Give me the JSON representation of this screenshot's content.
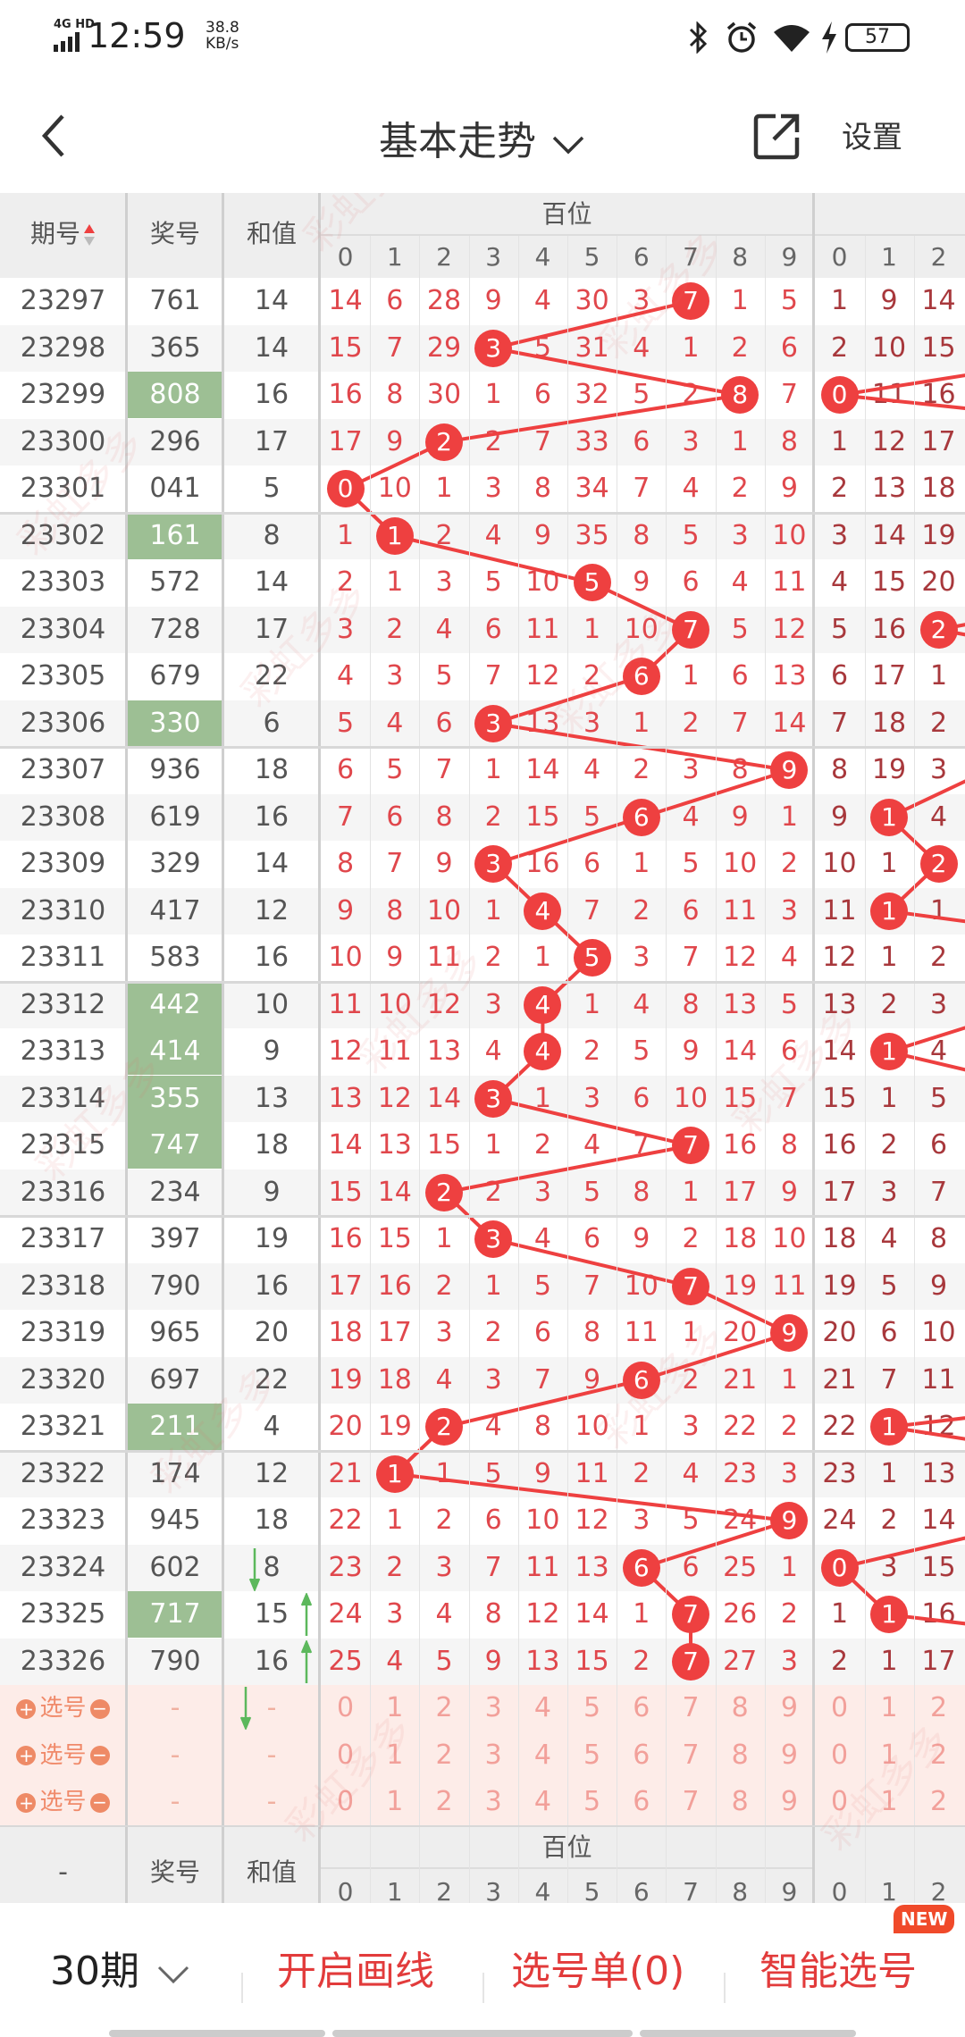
{
  "status_bar": {
    "network": "4G HD",
    "time": "12:59",
    "speed_value": "38.8",
    "speed_unit": "KB/s",
    "battery": "57"
  },
  "header": {
    "title": "基本走势",
    "settings_label": "设置"
  },
  "table": {
    "col_period": "期号",
    "col_prize": "奖号",
    "col_sum": "和值",
    "group_hundreds": "百位",
    "digits": [
      "0",
      "1",
      "2",
      "3",
      "4",
      "5",
      "6",
      "7",
      "8",
      "9"
    ],
    "tens_digits_visible": [
      "0",
      "1",
      "2"
    ],
    "rows": [
      {
        "period": "23297",
        "prize": "761",
        "sum": "14",
        "hi": false,
        "h": [
          14,
          6,
          28,
          9,
          4,
          30,
          3,
          7,
          1,
          5
        ],
        "t": [
          1,
          9,
          14
        ]
      },
      {
        "period": "23298",
        "prize": "365",
        "sum": "14",
        "hi": false,
        "h": [
          15,
          7,
          29,
          3,
          5,
          31,
          4,
          1,
          2,
          6
        ],
        "t": [
          2,
          10,
          15
        ]
      },
      {
        "period": "23299",
        "prize": "808",
        "sum": "16",
        "hi": true,
        "h": [
          16,
          8,
          30,
          1,
          6,
          32,
          5,
          2,
          8,
          7
        ],
        "t": [
          0,
          11,
          16
        ]
      },
      {
        "period": "23300",
        "prize": "296",
        "sum": "17",
        "hi": false,
        "h": [
          17,
          9,
          2,
          2,
          7,
          33,
          6,
          3,
          1,
          8
        ],
        "t": [
          1,
          12,
          17
        ]
      },
      {
        "period": "23301",
        "prize": "041",
        "sum": "5",
        "hi": false,
        "h": [
          0,
          10,
          1,
          3,
          8,
          34,
          7,
          4,
          2,
          9
        ],
        "t": [
          2,
          13,
          18
        ]
      },
      {
        "period": "23302",
        "prize": "161",
        "sum": "8",
        "hi": true,
        "h": [
          1,
          1,
          2,
          4,
          9,
          35,
          8,
          5,
          3,
          10
        ],
        "t": [
          3,
          14,
          19
        ]
      },
      {
        "period": "23303",
        "prize": "572",
        "sum": "14",
        "hi": false,
        "h": [
          2,
          1,
          3,
          5,
          10,
          5,
          9,
          6,
          4,
          11
        ],
        "t": [
          4,
          15,
          20
        ]
      },
      {
        "period": "23304",
        "prize": "728",
        "sum": "17",
        "hi": false,
        "h": [
          3,
          2,
          4,
          6,
          11,
          1,
          10,
          7,
          5,
          12
        ],
        "t": [
          5,
          16,
          2
        ]
      },
      {
        "period": "23305",
        "prize": "679",
        "sum": "22",
        "hi": false,
        "h": [
          4,
          3,
          5,
          7,
          12,
          2,
          6,
          1,
          6,
          13
        ],
        "t": [
          6,
          17,
          1
        ]
      },
      {
        "period": "23306",
        "prize": "330",
        "sum": "6",
        "hi": true,
        "h": [
          5,
          4,
          6,
          3,
          13,
          3,
          1,
          2,
          7,
          14
        ],
        "t": [
          7,
          18,
          2
        ]
      },
      {
        "period": "23307",
        "prize": "936",
        "sum": "18",
        "hi": false,
        "h": [
          6,
          5,
          7,
          1,
          14,
          4,
          2,
          3,
          8,
          9
        ],
        "t": [
          8,
          19,
          3
        ]
      },
      {
        "period": "23308",
        "prize": "619",
        "sum": "16",
        "hi": false,
        "h": [
          7,
          6,
          8,
          2,
          15,
          5,
          6,
          4,
          9,
          1
        ],
        "t": [
          9,
          1,
          4
        ]
      },
      {
        "period": "23309",
        "prize": "329",
        "sum": "14",
        "hi": false,
        "h": [
          8,
          7,
          9,
          3,
          16,
          6,
          1,
          5,
          10,
          2
        ],
        "t": [
          10,
          1,
          2
        ]
      },
      {
        "period": "23310",
        "prize": "417",
        "sum": "12",
        "hi": false,
        "h": [
          9,
          8,
          10,
          1,
          4,
          7,
          2,
          6,
          11,
          3
        ],
        "t": [
          11,
          1,
          1
        ]
      },
      {
        "period": "23311",
        "prize": "583",
        "sum": "16",
        "hi": false,
        "h": [
          10,
          9,
          11,
          2,
          1,
          5,
          3,
          7,
          12,
          4
        ],
        "t": [
          12,
          1,
          2
        ]
      },
      {
        "period": "23312",
        "prize": "442",
        "sum": "10",
        "hi": true,
        "h": [
          11,
          10,
          12,
          3,
          4,
          1,
          4,
          8,
          13,
          5
        ],
        "t": [
          13,
          2,
          3
        ]
      },
      {
        "period": "23313",
        "prize": "414",
        "sum": "9",
        "hi": true,
        "h": [
          12,
          11,
          13,
          4,
          4,
          2,
          5,
          9,
          14,
          6
        ],
        "t": [
          14,
          1,
          4
        ]
      },
      {
        "period": "23314",
        "prize": "355",
        "sum": "13",
        "hi": true,
        "h": [
          13,
          12,
          14,
          3,
          1,
          3,
          6,
          10,
          15,
          7
        ],
        "t": [
          15,
          1,
          5
        ]
      },
      {
        "period": "23315",
        "prize": "747",
        "sum": "18",
        "hi": true,
        "h": [
          14,
          13,
          15,
          1,
          2,
          4,
          7,
          7,
          16,
          8
        ],
        "t": [
          16,
          2,
          6
        ]
      },
      {
        "period": "23316",
        "prize": "234",
        "sum": "9",
        "hi": false,
        "h": [
          15,
          14,
          2,
          2,
          3,
          5,
          8,
          1,
          17,
          9
        ],
        "t": [
          17,
          3,
          7
        ]
      },
      {
        "period": "23317",
        "prize": "397",
        "sum": "19",
        "hi": false,
        "h": [
          16,
          15,
          1,
          3,
          4,
          6,
          9,
          2,
          18,
          10
        ],
        "t": [
          18,
          4,
          8
        ]
      },
      {
        "period": "23318",
        "prize": "790",
        "sum": "16",
        "hi": false,
        "h": [
          17,
          16,
          2,
          1,
          5,
          7,
          10,
          7,
          19,
          11
        ],
        "t": [
          19,
          5,
          9
        ]
      },
      {
        "period": "23319",
        "prize": "965",
        "sum": "20",
        "hi": false,
        "h": [
          18,
          17,
          3,
          2,
          6,
          8,
          11,
          1,
          20,
          9
        ],
        "t": [
          20,
          6,
          10
        ]
      },
      {
        "period": "23320",
        "prize": "697",
        "sum": "22",
        "hi": false,
        "h": [
          19,
          18,
          4,
          3,
          7,
          9,
          6,
          2,
          21,
          1
        ],
        "t": [
          21,
          7,
          11
        ]
      },
      {
        "period": "23321",
        "prize": "211",
        "sum": "4",
        "hi": true,
        "h": [
          20,
          19,
          2,
          4,
          8,
          10,
          1,
          3,
          22,
          2
        ],
        "t": [
          22,
          1,
          12
        ]
      },
      {
        "period": "23322",
        "prize": "174",
        "sum": "12",
        "hi": false,
        "h": [
          21,
          1,
          1,
          5,
          9,
          11,
          2,
          4,
          23,
          3
        ],
        "t": [
          23,
          1,
          13
        ]
      },
      {
        "period": "23323",
        "prize": "945",
        "sum": "18",
        "hi": false,
        "h": [
          22,
          1,
          2,
          6,
          10,
          12,
          3,
          5,
          24,
          9
        ],
        "t": [
          24,
          2,
          14
        ]
      },
      {
        "period": "23324",
        "prize": "602",
        "sum": "8",
        "hi": false,
        "trend": "down",
        "h": [
          23,
          2,
          3,
          7,
          11,
          13,
          6,
          6,
          25,
          1
        ],
        "t": [
          0,
          3,
          15
        ]
      },
      {
        "period": "23325",
        "prize": "717",
        "sum": "15",
        "hi": true,
        "trend": "up",
        "h": [
          24,
          3,
          4,
          8,
          12,
          14,
          1,
          7,
          26,
          2
        ],
        "t": [
          1,
          1,
          16
        ]
      },
      {
        "period": "23326",
        "prize": "790",
        "sum": "16",
        "hi": false,
        "trend": "up",
        "h": [
          25,
          4,
          5,
          9,
          13,
          15,
          2,
          7,
          27,
          3
        ],
        "t": [
          2,
          1,
          17
        ]
      }
    ],
    "select_rows": [
      {
        "label": "选号",
        "prize": "-",
        "sum": "-",
        "trend": "down"
      },
      {
        "label": "选号",
        "prize": "-",
        "sum": "-"
      },
      {
        "label": "选号",
        "prize": "-",
        "sum": "-"
      }
    ],
    "footer_period": "-"
  },
  "bottom_bar": {
    "periods": "30期",
    "draw_lines": "开启画线",
    "pick_list": "选号单(0)",
    "smart_pick": "智能选号",
    "new_badge": "NEW"
  },
  "watermark": "彩虹多多",
  "colors": {
    "hit": "#ee4040",
    "omit_hundreds": "#e0474c",
    "omit_tens": "#a8383c",
    "prize_highlight": "#9dbf94",
    "select_bg": "#fdece8",
    "accent": "#e23b3b",
    "trend_arrow": "#5cb85c"
  }
}
